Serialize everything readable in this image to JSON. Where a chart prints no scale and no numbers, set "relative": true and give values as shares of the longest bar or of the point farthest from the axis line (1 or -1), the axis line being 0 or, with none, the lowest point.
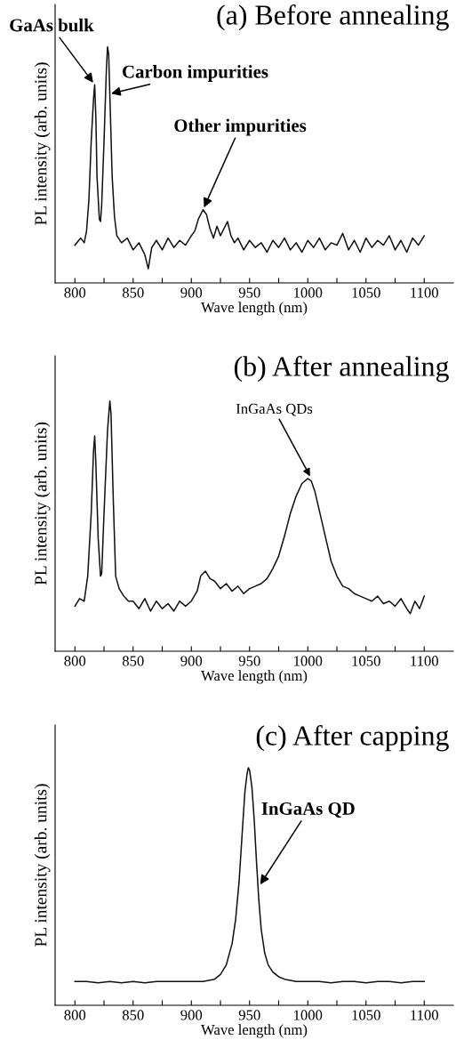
{
  "chart_data": [
    {
      "type": "line",
      "title": "(a) Before annealing",
      "xlabel": "Wave length (nm)",
      "ylabel": "PL intensity (arb. units)",
      "relative": true,
      "xlim": [
        783,
        1125
      ],
      "xticks": [
        800,
        {
          "value": 825,
          "label": null
        },
        850,
        {
          "value": 875,
          "label": null
        },
        900,
        {
          "value": 925,
          "label": null
        },
        950,
        {
          "value": 975,
          "label": null
        },
        1000,
        {
          "value": 1025,
          "label": null
        },
        1050,
        {
          "value": 1075,
          "label": null
        },
        1100
      ],
      "grid": false,
      "legend": false,
      "marker": "none",
      "line_style": "solid",
      "annotations": [
        {
          "text": "GaAs bulk",
          "x": 817,
          "y": 0.84
        },
        {
          "text": "Carbon impurities",
          "x": 829,
          "y": 0.8
        },
        {
          "text": "Other impurities",
          "x": 910,
          "y": 0.31
        }
      ],
      "series": [
        {
          "color": "#111111",
          "x": [
            800,
            805,
            808,
            810,
            812,
            814,
            816,
            817,
            818,
            819,
            821,
            822,
            823,
            825,
            827,
            828,
            829,
            830,
            832,
            834,
            836,
            840,
            845,
            850,
            855,
            860,
            863,
            866,
            870,
            875,
            880,
            885,
            890,
            895,
            900,
            903,
            906,
            910,
            913,
            916,
            919,
            922,
            925,
            928,
            931,
            934,
            937,
            940,
            945,
            950,
            955,
            960,
            965,
            970,
            975,
            980,
            985,
            990,
            995,
            1000,
            1005,
            1010,
            1015,
            1020,
            1025,
            1030,
            1035,
            1040,
            1045,
            1050,
            1055,
            1060,
            1065,
            1070,
            1075,
            1080,
            1085,
            1090,
            1095,
            1100
          ],
          "values": [
            0.16,
            0.19,
            0.17,
            0.22,
            0.35,
            0.6,
            0.78,
            0.84,
            0.7,
            0.45,
            0.27,
            0.26,
            0.33,
            0.6,
            0.9,
            1.0,
            0.97,
            0.8,
            0.45,
            0.28,
            0.2,
            0.17,
            0.19,
            0.14,
            0.17,
            0.12,
            0.06,
            0.15,
            0.18,
            0.14,
            0.19,
            0.15,
            0.18,
            0.16,
            0.2,
            0.22,
            0.27,
            0.31,
            0.29,
            0.23,
            0.19,
            0.24,
            0.2,
            0.23,
            0.26,
            0.2,
            0.17,
            0.19,
            0.14,
            0.18,
            0.15,
            0.17,
            0.13,
            0.18,
            0.15,
            0.19,
            0.14,
            0.17,
            0.13,
            0.18,
            0.15,
            0.19,
            0.14,
            0.17,
            0.16,
            0.21,
            0.14,
            0.18,
            0.13,
            0.19,
            0.15,
            0.18,
            0.16,
            0.2,
            0.14,
            0.18,
            0.13,
            0.19,
            0.16,
            0.2
          ]
        }
      ]
    },
    {
      "type": "line",
      "title": "(b) After annealing",
      "xlabel": "Wave length (nm)",
      "ylabel": "PL intensity (arb. units)",
      "relative": true,
      "xlim": [
        783,
        1125
      ],
      "xticks": [
        800,
        {
          "value": 825,
          "label": null
        },
        850,
        {
          "value": 875,
          "label": null
        },
        900,
        {
          "value": 925,
          "label": null
        },
        950,
        {
          "value": 975,
          "label": null
        },
        1000,
        {
          "value": 1025,
          "label": null
        },
        1050,
        {
          "value": 1075,
          "label": null
        },
        1100
      ],
      "grid": false,
      "legend": false,
      "marker": "none",
      "line_style": "solid",
      "annotations": [
        {
          "text": "InGaAs QDs",
          "x": 1003,
          "y": 0.69
        }
      ],
      "series": [
        {
          "color": "#111111",
          "x": [
            800,
            804,
            808,
            811,
            814,
            816,
            817,
            818,
            820,
            822,
            823,
            825,
            828,
            830,
            831,
            833,
            835,
            838,
            842,
            846,
            850,
            855,
            860,
            865,
            870,
            875,
            880,
            885,
            890,
            895,
            900,
            905,
            908,
            912,
            916,
            920,
            925,
            930,
            935,
            940,
            945,
            950,
            955,
            960,
            965,
            970,
            975,
            980,
            985,
            990,
            995,
            1000,
            1003,
            1006,
            1010,
            1015,
            1020,
            1025,
            1030,
            1035,
            1040,
            1045,
            1050,
            1055,
            1060,
            1065,
            1070,
            1075,
            1080,
            1085,
            1088,
            1092,
            1096,
            1100
          ],
          "values": [
            0.18,
            0.21,
            0.2,
            0.3,
            0.55,
            0.8,
            0.86,
            0.75,
            0.45,
            0.3,
            0.31,
            0.55,
            0.88,
            1.0,
            0.95,
            0.6,
            0.3,
            0.25,
            0.22,
            0.2,
            0.2,
            0.17,
            0.21,
            0.16,
            0.2,
            0.17,
            0.19,
            0.16,
            0.2,
            0.18,
            0.2,
            0.24,
            0.3,
            0.32,
            0.29,
            0.28,
            0.25,
            0.27,
            0.24,
            0.26,
            0.23,
            0.25,
            0.26,
            0.27,
            0.29,
            0.33,
            0.38,
            0.46,
            0.55,
            0.62,
            0.67,
            0.69,
            0.68,
            0.64,
            0.56,
            0.46,
            0.36,
            0.3,
            0.26,
            0.25,
            0.23,
            0.22,
            0.21,
            0.2,
            0.22,
            0.19,
            0.2,
            0.18,
            0.21,
            0.17,
            0.15,
            0.2,
            0.17,
            0.22
          ]
        }
      ]
    },
    {
      "type": "line",
      "title": "(c) After capping",
      "xlabel": "Wave length (nm)",
      "ylabel": "PL intensity (arb. units)",
      "relative": true,
      "xlim": [
        783,
        1125
      ],
      "xticks": [
        800,
        {
          "value": 825,
          "label": null
        },
        850,
        {
          "value": 875,
          "label": null
        },
        900,
        {
          "value": 925,
          "label": null
        },
        950,
        {
          "value": 975,
          "label": null
        },
        1000,
        {
          "value": 1025,
          "label": null
        },
        1050,
        {
          "value": 1075,
          "label": null
        },
        1100
      ],
      "grid": false,
      "legend": false,
      "marker": "none",
      "line_style": "solid",
      "annotations": [
        {
          "text": "InGaAs QD",
          "x": 958,
          "y": 0.5
        }
      ],
      "series": [
        {
          "color": "#111111",
          "x": [
            800,
            810,
            820,
            830,
            840,
            850,
            860,
            870,
            880,
            890,
            900,
            910,
            915,
            920,
            925,
            930,
            935,
            938,
            941,
            944,
            946,
            948,
            949,
            950,
            952,
            954,
            956,
            958,
            960,
            963,
            966,
            970,
            975,
            980,
            990,
            1000,
            1010,
            1020,
            1030,
            1040,
            1050,
            1060,
            1070,
            1080,
            1090,
            1100
          ],
          "values": [
            0.1,
            0.1,
            0.095,
            0.1,
            0.095,
            0.1,
            0.095,
            0.1,
            0.1,
            0.1,
            0.1,
            0.1,
            0.105,
            0.11,
            0.13,
            0.17,
            0.26,
            0.36,
            0.52,
            0.75,
            0.9,
            0.98,
            1.0,
            0.99,
            0.92,
            0.78,
            0.6,
            0.44,
            0.32,
            0.22,
            0.17,
            0.14,
            0.12,
            0.11,
            0.1,
            0.1,
            0.1,
            0.095,
            0.1,
            0.1,
            0.095,
            0.1,
            0.1,
            0.095,
            0.1,
            0.1
          ]
        }
      ]
    }
  ]
}
